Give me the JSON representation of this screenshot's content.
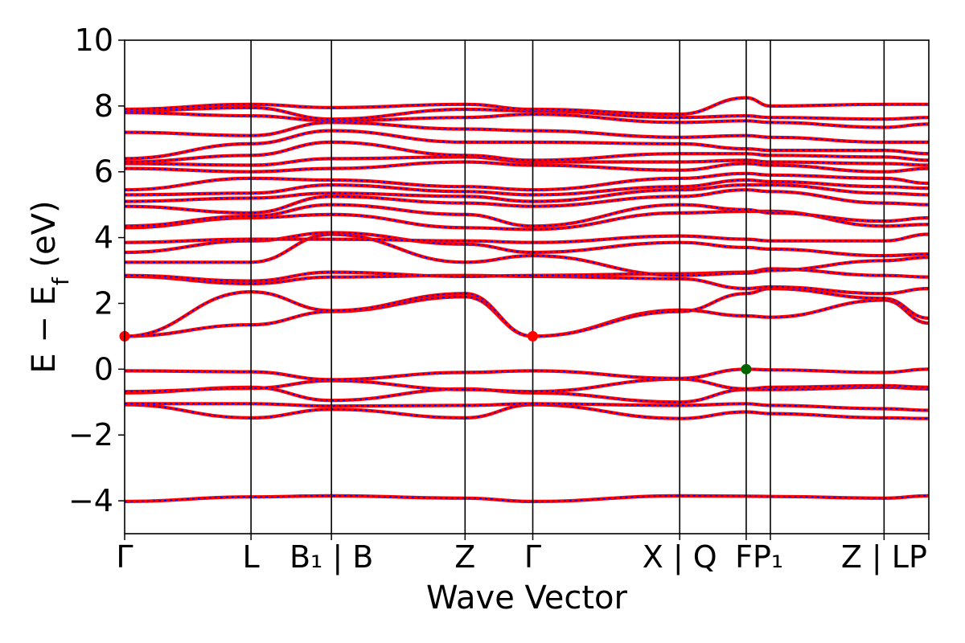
{
  "chart_data": {
    "type": "line",
    "title": "",
    "xlabel": "Wave Vector",
    "ylabel": "E − E_f (eV)",
    "ylim": [
      -5,
      10
    ],
    "yticks": [
      -4,
      -2,
      0,
      2,
      4,
      6,
      8,
      10
    ],
    "ytick_labels": [
      "−4",
      "−2",
      "0",
      "2",
      "4",
      "6",
      "8",
      "10"
    ],
    "grid": false,
    "legend": "none",
    "xrange": [
      0,
      13.3
    ],
    "kpoints": [
      {
        "label": "Γ",
        "x": 0
      },
      {
        "label": "L",
        "x": 2.09
      },
      {
        "label": "B₁ | B",
        "x": 3.42
      },
      {
        "label": "Z",
        "x": 5.63
      },
      {
        "label": "Γ",
        "x": 6.75
      },
      {
        "label": "X | Q",
        "x": 9.18
      },
      {
        "label": "F",
        "x": 10.28
      },
      {
        "label": "P₁",
        "x": 10.68
      },
      {
        "label": "Z | LP",
        "x": 12.56
      },
      {
        "label": "",
        "x": 13.3
      }
    ],
    "colors": {
      "band_main": "#ff0000",
      "band_overlay": "#0000ff",
      "cbm_marker": "#ff0000",
      "vbm_marker": "#006400",
      "axes": "#000000"
    },
    "markers": [
      {
        "name": "CBM",
        "x": 0,
        "y": 1.0,
        "color": "#ff0000"
      },
      {
        "name": "CBM",
        "x": 6.75,
        "y": 1.0,
        "color": "#ff0000"
      },
      {
        "name": "VBM",
        "x": 10.28,
        "y": 0.0,
        "color": "#006400"
      }
    ],
    "bands": [
      {
        "x": [
          0,
          2.09,
          3.42,
          5.63,
          6.75,
          9.18,
          10.28,
          10.68,
          12.56,
          13.3
        ],
        "y": [
          -4.02,
          -3.88,
          -3.85,
          -3.92,
          -4.02,
          -3.85,
          -3.86,
          -3.87,
          -3.92,
          -3.85
        ]
      },
      {
        "x": [
          0,
          2.09,
          3.42,
          5.63,
          6.75,
          9.18,
          10.28,
          10.68,
          12.56,
          13.3
        ],
        "y": [
          -1.08,
          -1.48,
          -1.22,
          -1.48,
          -1.08,
          -1.5,
          -1.3,
          -1.35,
          -1.48,
          -1.5
        ]
      },
      {
        "x": [
          0,
          2.09,
          3.42,
          5.63,
          6.75,
          9.18,
          10.28,
          10.68,
          12.56,
          13.3
        ],
        "y": [
          -1.05,
          -1.05,
          -1.12,
          -1.1,
          -1.05,
          -1.1,
          -1.05,
          -1.1,
          -1.2,
          -1.25
        ]
      },
      {
        "x": [
          0,
          2.09,
          3.42,
          5.63,
          6.75,
          9.18,
          10.28,
          10.68,
          12.56,
          13.3
        ],
        "y": [
          -0.72,
          -0.55,
          -0.95,
          -0.6,
          -0.72,
          -1.0,
          -0.62,
          -0.62,
          -0.55,
          -0.6
        ]
      },
      {
        "x": [
          0,
          2.09,
          3.42,
          5.63,
          6.75,
          9.18,
          10.28,
          10.68,
          12.56,
          13.3
        ],
        "y": [
          -0.68,
          -0.58,
          -0.35,
          -0.62,
          -0.68,
          -0.3,
          -0.6,
          -0.55,
          -0.5,
          -0.55
        ]
      },
      {
        "x": [
          0,
          2.09,
          3.42,
          5.63,
          6.75,
          9.18,
          10.28,
          10.68,
          12.56,
          13.3
        ],
        "y": [
          -0.05,
          -0.08,
          -0.32,
          -0.1,
          -0.05,
          -0.28,
          0.0,
          -0.02,
          -0.1,
          -0.0
        ]
      },
      {
        "x": [
          0,
          2.09,
          3.42,
          5.63,
          6.75,
          9.18,
          10.28,
          10.68,
          12.56,
          13.3
        ],
        "y": [
          1.0,
          1.35,
          1.75,
          2.2,
          1.0,
          1.8,
          1.62,
          1.58,
          2.1,
          1.4
        ]
      },
      {
        "x": [
          0,
          2.09,
          3.42,
          5.63,
          6.75,
          9.18,
          10.28,
          10.68,
          12.56,
          13.3
        ],
        "y": [
          1.0,
          2.35,
          1.78,
          2.3,
          1.0,
          1.75,
          2.3,
          2.45,
          2.15,
          1.55
        ]
      },
      {
        "x": [
          0,
          2.09,
          3.42,
          5.63,
          6.75,
          9.18,
          10.28,
          10.68,
          12.56,
          13.3
        ],
        "y": [
          2.82,
          2.6,
          2.8,
          2.85,
          2.82,
          2.75,
          2.45,
          2.5,
          2.3,
          2.45
        ]
      },
      {
        "x": [
          0,
          2.09,
          3.42,
          5.63,
          6.75,
          9.18,
          10.28,
          10.68,
          12.56,
          13.3
        ],
        "y": [
          2.85,
          2.68,
          2.95,
          2.82,
          2.85,
          2.9,
          2.95,
          3.05,
          2.85,
          2.8
        ]
      },
      {
        "x": [
          0,
          2.09,
          3.42,
          5.63,
          6.75,
          9.18,
          10.28,
          10.68,
          12.56,
          13.3
        ],
        "y": [
          3.25,
          3.25,
          4.1,
          3.25,
          3.45,
          2.85,
          2.92,
          3.0,
          3.3,
          3.4
        ]
      },
      {
        "x": [
          0,
          2.09,
          3.42,
          5.63,
          6.75,
          9.18,
          10.28,
          10.68,
          12.56,
          13.3
        ],
        "y": [
          3.55,
          3.9,
          4.15,
          3.8,
          3.55,
          3.85,
          3.7,
          3.65,
          3.45,
          3.5
        ]
      },
      {
        "x": [
          0,
          2.09,
          3.42,
          5.63,
          6.75,
          9.18,
          10.28,
          10.68,
          12.56,
          13.3
        ],
        "y": [
          3.85,
          3.95,
          3.95,
          3.9,
          3.85,
          4.05,
          3.95,
          3.9,
          3.9,
          4.1
        ]
      },
      {
        "x": [
          0,
          2.09,
          3.42,
          5.63,
          6.75,
          9.18,
          10.28,
          10.68,
          12.56,
          13.3
        ],
        "y": [
          4.3,
          4.6,
          4.7,
          4.3,
          4.25,
          4.75,
          4.8,
          4.8,
          4.35,
          4.4
        ]
      },
      {
        "x": [
          0,
          2.09,
          3.42,
          5.63,
          6.75,
          9.18,
          10.28,
          10.68,
          12.56,
          13.3
        ],
        "y": [
          4.35,
          4.65,
          5.0,
          4.7,
          4.35,
          5.0,
          4.85,
          4.75,
          4.5,
          4.6
        ]
      },
      {
        "x": [
          0,
          2.09,
          3.42,
          5.63,
          6.75,
          9.18,
          10.28,
          10.68,
          12.56,
          13.3
        ],
        "y": [
          4.95,
          4.75,
          5.25,
          5.05,
          4.95,
          5.25,
          5.45,
          5.4,
          5.05,
          5.0
        ]
      },
      {
        "x": [
          0,
          2.09,
          3.42,
          5.63,
          6.75,
          9.18,
          10.28,
          10.68,
          12.56,
          13.3
        ],
        "y": [
          5.1,
          5.2,
          5.35,
          5.25,
          5.1,
          5.45,
          5.6,
          5.6,
          5.35,
          5.3
        ]
      },
      {
        "x": [
          0,
          2.09,
          3.42,
          5.63,
          6.75,
          9.18,
          10.28,
          10.68,
          12.56,
          13.3
        ],
        "y": [
          5.3,
          5.35,
          5.6,
          5.4,
          5.3,
          5.55,
          5.75,
          5.7,
          5.55,
          5.5
        ]
      },
      {
        "x": [
          0,
          2.09,
          3.42,
          5.63,
          6.75,
          9.18,
          10.28,
          10.68,
          12.56,
          13.3
        ],
        "y": [
          5.45,
          5.8,
          5.75,
          5.55,
          5.45,
          5.8,
          5.95,
          5.9,
          5.8,
          5.65
        ]
      },
      {
        "x": [
          0,
          2.09,
          3.42,
          5.63,
          6.75,
          9.18,
          10.28,
          10.68,
          12.56,
          13.3
        ],
        "y": [
          6.1,
          6.0,
          6.1,
          6.3,
          6.2,
          6.05,
          6.25,
          6.2,
          6.0,
          6.1
        ]
      },
      {
        "x": [
          0,
          2.09,
          3.42,
          5.63,
          6.75,
          9.18,
          10.28,
          10.68,
          12.56,
          13.3
        ],
        "y": [
          6.25,
          6.2,
          6.4,
          6.45,
          6.3,
          6.3,
          6.35,
          6.3,
          6.25,
          6.2
        ]
      },
      {
        "x": [
          0,
          2.09,
          3.42,
          5.63,
          6.75,
          9.18,
          10.28,
          10.68,
          12.56,
          13.3
        ],
        "y": [
          6.3,
          6.5,
          6.9,
          6.5,
          6.35,
          6.55,
          6.55,
          6.5,
          6.45,
          6.35
        ]
      },
      {
        "x": [
          0,
          2.09,
          3.42,
          5.63,
          6.75,
          9.18,
          10.28,
          10.68,
          12.56,
          13.3
        ],
        "y": [
          6.4,
          6.85,
          7.25,
          6.9,
          6.9,
          6.85,
          6.7,
          6.65,
          6.65,
          6.55
        ]
      },
      {
        "x": [
          0,
          2.09,
          3.42,
          5.63,
          6.75,
          9.18,
          10.28,
          10.68,
          12.56,
          13.3
        ],
        "y": [
          7.2,
          7.1,
          7.5,
          7.3,
          7.25,
          7.05,
          7.1,
          7.05,
          6.9,
          6.9
        ]
      },
      {
        "x": [
          0,
          2.09,
          3.42,
          5.63,
          6.75,
          9.18,
          10.28,
          10.68,
          12.56,
          13.3
        ],
        "y": [
          7.8,
          7.7,
          7.55,
          7.65,
          7.75,
          7.5,
          7.55,
          7.5,
          7.35,
          7.45
        ]
      },
      {
        "x": [
          0,
          2.09,
          3.42,
          5.63,
          6.75,
          9.18,
          10.28,
          10.68,
          12.56,
          13.3
        ],
        "y": [
          7.85,
          7.95,
          7.6,
          7.9,
          7.85,
          7.65,
          7.7,
          7.65,
          7.6,
          7.65
        ]
      },
      {
        "x": [
          0,
          2.09,
          3.42,
          5.63,
          6.75,
          9.18,
          10.28,
          10.68,
          12.56,
          13.3
        ],
        "y": [
          7.9,
          8.05,
          7.95,
          8.05,
          7.9,
          7.75,
          8.25,
          8.0,
          8.05,
          8.05
        ]
      }
    ]
  }
}
